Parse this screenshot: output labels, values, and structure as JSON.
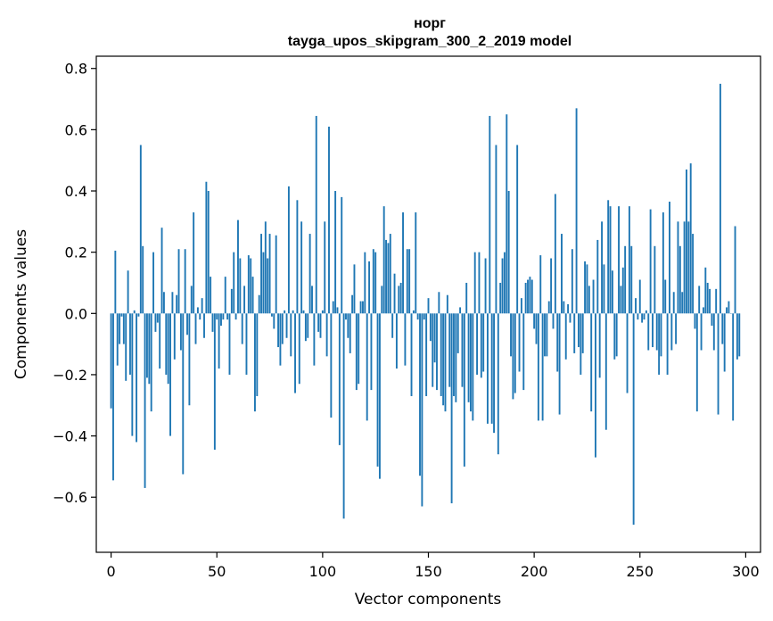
{
  "chart_data": {
    "type": "bar",
    "title": "норг",
    "subtitle": "tayga_upos_skipgram_300_2_2019 model",
    "xlabel": "Vector components",
    "ylabel": "Components values",
    "xlim": [
      -7,
      307
    ],
    "ylim": [
      -0.78,
      0.84
    ],
    "xticks": [
      0,
      50,
      100,
      150,
      200,
      250,
      300
    ],
    "yticks": [
      -0.6,
      -0.4,
      -0.2,
      0.0,
      0.2,
      0.4,
      0.6,
      0.8
    ],
    "xtick_labels": [
      "0",
      "50",
      "100",
      "150",
      "200",
      "250",
      "300"
    ],
    "ytick_labels": [
      "−0.6",
      "−0.4",
      "−0.2",
      "0.0",
      "0.2",
      "0.4",
      "0.6",
      "0.8"
    ],
    "bar_color": "#1f77b4",
    "values": [
      -0.31,
      -0.545,
      0.205,
      -0.17,
      -0.1,
      -0.01,
      -0.1,
      -0.22,
      0.14,
      -0.2,
      -0.4,
      0.01,
      -0.42,
      -0.01,
      0.55,
      0.22,
      -0.57,
      -0.21,
      -0.23,
      -0.32,
      0.2,
      -0.06,
      -0.03,
      -0.18,
      0.28,
      0.07,
      -0.2,
      -0.23,
      -0.4,
      0.07,
      -0.15,
      0.06,
      0.21,
      -0.12,
      -0.525,
      0.21,
      -0.07,
      -0.3,
      0.09,
      0.33,
      -0.1,
      0.02,
      -0.02,
      0.05,
      -0.08,
      0.43,
      0.4,
      0.12,
      -0.06,
      -0.445,
      -0.02,
      -0.18,
      -0.04,
      -0.02,
      0.12,
      -0.02,
      -0.2,
      0.08,
      0.2,
      -0.02,
      0.305,
      0.18,
      -0.1,
      0.09,
      -0.2,
      0.19,
      0.18,
      0.12,
      -0.32,
      -0.27,
      0.06,
      0.26,
      0.2,
      0.3,
      0.18,
      0.26,
      -0.01,
      -0.05,
      0.255,
      -0.11,
      -0.17,
      -0.1,
      0.01,
      -0.08,
      0.415,
      -0.14,
      0.01,
      -0.26,
      0.37,
      -0.23,
      0.3,
      0.01,
      -0.09,
      -0.08,
      0.26,
      0.09,
      -0.17,
      0.645,
      -0.06,
      -0.08,
      0.01,
      0.3,
      -0.14,
      0.61,
      -0.34,
      0.04,
      0.4,
      0.02,
      -0.43,
      0.38,
      -0.67,
      -0.02,
      -0.08,
      -0.13,
      0.06,
      0.16,
      -0.25,
      -0.23,
      0.04,
      0.04,
      0.2,
      -0.35,
      0.17,
      -0.25,
      0.21,
      0.2,
      -0.5,
      -0.54,
      0.09,
      0.35,
      0.24,
      0.23,
      0.26,
      -0.08,
      0.13,
      -0.18,
      0.09,
      0.1,
      0.33,
      -0.17,
      0.21,
      0.21,
      -0.27,
      0.01,
      0.33,
      -0.02,
      -0.53,
      -0.63,
      -0.02,
      -0.27,
      0.05,
      -0.09,
      -0.24,
      -0.16,
      -0.25,
      0.07,
      -0.27,
      -0.3,
      -0.32,
      0.06,
      -0.24,
      -0.62,
      -0.27,
      -0.29,
      -0.13,
      0.02,
      -0.24,
      -0.5,
      0.1,
      -0.29,
      -0.32,
      -0.35,
      0.2,
      -0.2,
      0.2,
      -0.21,
      -0.19,
      0.18,
      -0.36,
      0.645,
      -0.36,
      -0.39,
      0.55,
      -0.46,
      0.1,
      0.18,
      0.2,
      0.65,
      0.4,
      -0.14,
      -0.28,
      -0.26,
      0.55,
      -0.19,
      0.05,
      -0.25,
      0.1,
      0.11,
      0.12,
      0.11,
      -0.05,
      -0.1,
      -0.35,
      0.19,
      -0.35,
      -0.14,
      -0.14,
      0.04,
      0.18,
      -0.05,
      0.39,
      -0.19,
      -0.33,
      0.26,
      0.04,
      -0.15,
      0.03,
      -0.03,
      0.21,
      -0.13,
      0.67,
      -0.11,
      -0.2,
      -0.13,
      0.17,
      0.16,
      0.09,
      -0.32,
      0.11,
      -0.47,
      0.24,
      -0.21,
      0.3,
      0.16,
      -0.38,
      0.37,
      0.35,
      0.14,
      -0.15,
      -0.14,
      0.35,
      0.09,
      0.15,
      0.22,
      -0.26,
      0.35,
      0.22,
      -0.69,
      0.05,
      -0.02,
      0.11,
      -0.03,
      -0.02,
      0.01,
      -0.12,
      0.34,
      -0.11,
      0.22,
      -0.12,
      -0.2,
      -0.14,
      0.33,
      0.11,
      -0.2,
      0.365,
      -0.12,
      0.07,
      -0.1,
      0.3,
      0.22,
      0.07,
      0.3,
      0.47,
      0.3,
      0.49,
      0.26,
      -0.05,
      -0.32,
      0.09,
      -0.12,
      0.02,
      0.15,
      0.1,
      0.08,
      -0.04,
      -0.12,
      0.08,
      -0.33,
      0.75,
      -0.1,
      -0.19,
      0.02,
      0.04,
      0.0,
      -0.35,
      0.285,
      -0.15,
      -0.14
    ]
  }
}
